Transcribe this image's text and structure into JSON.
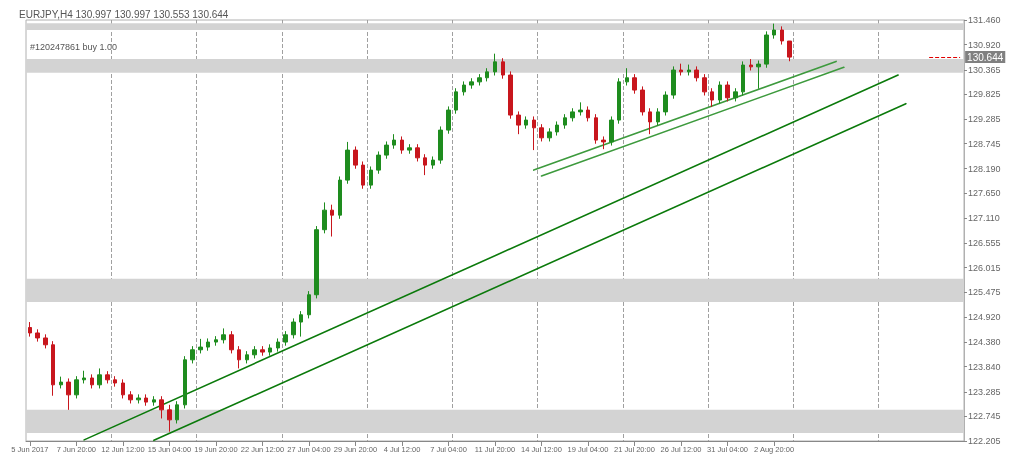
{
  "chart_data": {
    "type": "candlestick",
    "title": "EURJPY,H4 130.997 130.997 130.553 130.644",
    "annotations": [
      "#120247861 buy 1.00"
    ],
    "categories": [
      "5 Jun 2017",
      null,
      null,
      null,
      null,
      null,
      "7 Jun 20:00",
      null,
      null,
      null,
      null,
      null,
      "12 Jun 12:00",
      null,
      null,
      null,
      null,
      null,
      "15 Jun 04:00",
      null,
      null,
      null,
      null,
      null,
      "19 Jun 20:00",
      null,
      null,
      null,
      null,
      null,
      "22 Jun 12:00",
      null,
      null,
      null,
      null,
      null,
      "27 Jun 04:00",
      null,
      null,
      null,
      null,
      null,
      "29 Jun 20:00",
      null,
      null,
      null,
      null,
      null,
      "4 Jul 12:00",
      null,
      null,
      null,
      null,
      null,
      "7 Jul 04:00",
      null,
      null,
      null,
      null,
      null,
      "11 Jul 20:00",
      null,
      null,
      null,
      null,
      null,
      "14 Jul 12:00",
      null,
      null,
      null,
      null,
      null,
      "19 Jul 04:00",
      null,
      null,
      null,
      null,
      null,
      "21 Jul 20:00",
      null,
      null,
      null,
      null,
      null,
      "26 Jul 12:00",
      null,
      null,
      null,
      null,
      null,
      "31 Jul 04:00",
      null,
      null,
      null,
      null,
      null,
      "2 Aug 20:00",
      null,
      null,
      null,
      null,
      null,
      null,
      null,
      null,
      null,
      null,
      null,
      null,
      null,
      null,
      null,
      null,
      null,
      null,
      null,
      null,
      null,
      null,
      null,
      null
    ],
    "ohlc": [
      [
        124.7,
        124.82,
        124.5,
        124.58
      ],
      [
        124.58,
        124.66,
        124.39,
        124.47
      ],
      [
        124.47,
        124.55,
        124.24,
        124.32
      ],
      [
        124.32,
        124.4,
        123.2,
        123.44
      ],
      [
        123.44,
        123.62,
        123.36,
        123.5
      ],
      [
        123.5,
        123.58,
        122.89,
        123.22
      ],
      [
        123.22,
        123.63,
        123.14,
        123.55
      ],
      [
        123.55,
        123.75,
        123.47,
        123.59
      ],
      [
        123.59,
        123.67,
        123.36,
        123.44
      ],
      [
        123.44,
        123.8,
        123.36,
        123.66
      ],
      [
        123.66,
        123.74,
        123.47,
        123.55
      ],
      [
        123.55,
        123.63,
        123.4,
        123.48
      ],
      [
        123.48,
        123.56,
        123.14,
        123.22
      ],
      [
        123.22,
        123.3,
        123.03,
        123.11
      ],
      [
        123.11,
        123.23,
        123.03,
        123.15
      ],
      [
        123.15,
        123.23,
        122.98,
        123.06
      ],
      [
        123.06,
        123.19,
        122.98,
        123.11
      ],
      [
        123.11,
        123.19,
        122.7,
        122.89
      ],
      [
        122.89,
        123.0,
        122.41,
        122.67
      ],
      [
        122.67,
        123.08,
        122.59,
        123.0
      ],
      [
        123.0,
        124.07,
        122.92,
        123.99
      ],
      [
        123.99,
        124.29,
        123.91,
        124.21
      ],
      [
        124.21,
        124.45,
        124.13,
        124.27
      ],
      [
        124.27,
        124.46,
        124.19,
        124.38
      ],
      [
        124.38,
        124.51,
        124.3,
        124.43
      ],
      [
        124.43,
        124.68,
        124.35,
        124.54
      ],
      [
        124.54,
        124.62,
        124.13,
        124.21
      ],
      [
        124.21,
        124.29,
        123.8,
        123.99
      ],
      [
        123.99,
        124.18,
        123.91,
        124.1
      ],
      [
        124.1,
        124.29,
        124.02,
        124.21
      ],
      [
        124.21,
        124.29,
        124.08,
        124.16
      ],
      [
        124.16,
        124.33,
        124.08,
        124.25
      ],
      [
        124.25,
        124.46,
        124.17,
        124.38
      ],
      [
        124.38,
        124.62,
        124.3,
        124.54
      ],
      [
        124.54,
        124.9,
        124.46,
        124.82
      ],
      [
        124.82,
        125.06,
        124.5,
        124.98
      ],
      [
        124.98,
        125.5,
        124.9,
        125.42
      ],
      [
        125.42,
        126.93,
        125.34,
        126.85
      ],
      [
        126.85,
        127.45,
        126.77,
        127.28
      ],
      [
        127.28,
        127.4,
        126.7,
        127.17
      ],
      [
        127.17,
        128.02,
        127.09,
        127.94
      ],
      [
        127.94,
        128.78,
        127.86,
        128.6
      ],
      [
        128.6,
        128.68,
        128.19,
        128.27
      ],
      [
        128.27,
        128.35,
        127.75,
        127.83
      ],
      [
        127.83,
        128.24,
        127.75,
        128.16
      ],
      [
        128.16,
        128.57,
        128.08,
        128.49
      ],
      [
        128.49,
        128.79,
        128.41,
        128.71
      ],
      [
        128.71,
        128.95,
        128.63,
        128.82
      ],
      [
        128.82,
        128.9,
        128.52,
        128.6
      ],
      [
        128.6,
        128.73,
        128.52,
        128.65
      ],
      [
        128.65,
        128.73,
        128.35,
        128.43
      ],
      [
        128.43,
        128.51,
        128.05,
        128.27
      ],
      [
        128.27,
        128.46,
        128.19,
        128.38
      ],
      [
        128.38,
        129.12,
        128.3,
        129.04
      ],
      [
        129.04,
        129.56,
        128.96,
        129.48
      ],
      [
        129.48,
        129.96,
        129.4,
        129.88
      ],
      [
        129.88,
        130.11,
        129.8,
        130.03
      ],
      [
        130.03,
        130.18,
        129.95,
        130.1
      ],
      [
        130.1,
        130.27,
        130.02,
        130.19
      ],
      [
        130.19,
        130.4,
        130.11,
        130.32
      ],
      [
        130.32,
        130.72,
        130.24,
        130.54
      ],
      [
        130.54,
        130.62,
        130.17,
        130.25
      ],
      [
        130.25,
        130.33,
        129.29,
        129.37
      ],
      [
        129.37,
        129.45,
        128.95,
        129.15
      ],
      [
        129.15,
        129.34,
        129.07,
        129.26
      ],
      [
        129.26,
        129.34,
        128.6,
        129.09
      ],
      [
        129.09,
        129.17,
        128.79,
        128.87
      ],
      [
        128.87,
        129.08,
        128.79,
        129.0
      ],
      [
        129.0,
        129.23,
        128.92,
        129.15
      ],
      [
        129.15,
        129.39,
        129.07,
        129.31
      ],
      [
        129.31,
        129.52,
        129.23,
        129.44
      ],
      [
        129.44,
        129.65,
        129.36,
        129.48
      ],
      [
        129.48,
        129.56,
        129.23,
        129.31
      ],
      [
        129.31,
        129.39,
        128.74,
        128.82
      ],
      [
        128.82,
        128.9,
        128.62,
        128.78
      ],
      [
        128.78,
        129.34,
        128.7,
        129.26
      ],
      [
        129.26,
        130.18,
        129.18,
        130.1
      ],
      [
        130.1,
        130.4,
        130.02,
        130.19
      ],
      [
        130.19,
        130.27,
        129.84,
        129.92
      ],
      [
        129.92,
        130.0,
        129.36,
        129.44
      ],
      [
        129.44,
        129.52,
        128.95,
        129.22
      ],
      [
        129.22,
        129.52,
        129.14,
        129.44
      ],
      [
        129.44,
        129.89,
        129.36,
        129.81
      ],
      [
        129.81,
        130.44,
        129.73,
        130.36
      ],
      [
        130.36,
        130.5,
        130.24,
        130.32
      ],
      [
        130.32,
        130.48,
        130.24,
        130.36
      ],
      [
        130.36,
        130.44,
        130.11,
        130.19
      ],
      [
        130.19,
        130.27,
        129.8,
        129.88
      ],
      [
        129.88,
        129.96,
        129.55,
        129.7
      ],
      [
        129.7,
        130.11,
        129.62,
        130.03
      ],
      [
        130.03,
        130.11,
        129.67,
        129.75
      ],
      [
        129.75,
        129.96,
        129.67,
        129.88
      ],
      [
        129.88,
        130.55,
        129.8,
        130.47
      ],
      [
        130.47,
        130.6,
        130.35,
        130.43
      ],
      [
        130.43,
        130.57,
        129.95,
        130.49
      ],
      [
        130.49,
        131.21,
        130.41,
        131.13
      ],
      [
        131.13,
        131.38,
        131.05,
        131.24
      ],
      [
        131.24,
        131.32,
        130.92,
        131.0
      ],
      [
        130.997,
        130.997,
        130.553,
        130.644
      ],
      null,
      null,
      null,
      null,
      null,
      null,
      null,
      null,
      null,
      null,
      null,
      null,
      null,
      null,
      null,
      null,
      null,
      null,
      null,
      null,
      null,
      null
    ],
    "series": [
      {
        "type": "line",
        "color": "#0b7a0b",
        "values": [
          null,
          null,
          null,
          null,
          null,
          null,
          null,
          122.23,
          null,
          null,
          null,
          null,
          null,
          null,
          null,
          null,
          null,
          null,
          null,
          null,
          null,
          null,
          null,
          null,
          null,
          null,
          null,
          null,
          null,
          null,
          null,
          null,
          null,
          null,
          null,
          null,
          null,
          null,
          null,
          null,
          null,
          null,
          null,
          null,
          null,
          null,
          null,
          null,
          null,
          null,
          null,
          null,
          null,
          null,
          null,
          null,
          null,
          null,
          null,
          null,
          null,
          null,
          null,
          null,
          null,
          null,
          null,
          null,
          null,
          null,
          null,
          null,
          null,
          null,
          null,
          null,
          null,
          null,
          null,
          null,
          null,
          null,
          null,
          null,
          null,
          null,
          null,
          null,
          null,
          null,
          null,
          null,
          null,
          null,
          null,
          null,
          null,
          null,
          null,
          null,
          null,
          null,
          null,
          null,
          null,
          null,
          null,
          null,
          null,
          null,
          null,
          null,
          130.25,
          null,
          null,
          null,
          null,
          null,
          null,
          null,
          null
        ]
      },
      {
        "type": "line",
        "color": "#0b7a0b",
        "values": [
          null,
          null,
          null,
          null,
          null,
          null,
          null,
          null,
          null,
          null,
          null,
          null,
          null,
          null,
          null,
          null,
          122.22,
          null,
          null,
          null,
          null,
          null,
          null,
          null,
          null,
          null,
          null,
          null,
          null,
          null,
          null,
          null,
          null,
          null,
          null,
          null,
          null,
          null,
          null,
          null,
          null,
          null,
          null,
          null,
          null,
          null,
          null,
          null,
          null,
          null,
          null,
          null,
          null,
          null,
          null,
          null,
          null,
          null,
          null,
          null,
          null,
          null,
          null,
          null,
          null,
          null,
          null,
          null,
          null,
          null,
          null,
          null,
          null,
          null,
          null,
          null,
          null,
          null,
          null,
          null,
          null,
          null,
          null,
          null,
          null,
          null,
          null,
          null,
          null,
          null,
          null,
          null,
          null,
          null,
          null,
          null,
          null,
          null,
          null,
          null,
          null,
          null,
          null,
          null,
          null,
          null,
          null,
          null,
          null,
          null,
          null,
          null,
          null,
          129.62,
          null,
          null,
          null,
          null,
          null,
          null,
          null
        ]
      },
      {
        "type": "line",
        "color": "#3d9a3d",
        "values": [
          null,
          null,
          null,
          null,
          null,
          null,
          null,
          null,
          null,
          null,
          null,
          null,
          null,
          null,
          null,
          null,
          null,
          null,
          null,
          null,
          null,
          null,
          null,
          null,
          null,
          null,
          null,
          null,
          null,
          null,
          null,
          null,
          null,
          null,
          null,
          null,
          null,
          null,
          null,
          null,
          null,
          null,
          null,
          null,
          null,
          null,
          null,
          null,
          null,
          null,
          null,
          null,
          null,
          null,
          null,
          null,
          null,
          null,
          null,
          null,
          null,
          null,
          null,
          null,
          null,
          128.16,
          null,
          null,
          null,
          null,
          null,
          null,
          null,
          null,
          null,
          null,
          null,
          null,
          null,
          null,
          null,
          null,
          null,
          null,
          null,
          null,
          null,
          null,
          null,
          null,
          null,
          null,
          null,
          null,
          null,
          null,
          null,
          null,
          null,
          null,
          null,
          null,
          null,
          null,
          130.55,
          null,
          null,
          null,
          null,
          null,
          null,
          null,
          null,
          null,
          null,
          null,
          null,
          null,
          null,
          null,
          null
        ]
      },
      {
        "type": "line",
        "color": "#3d9a3d",
        "values": [
          null,
          null,
          null,
          null,
          null,
          null,
          null,
          null,
          null,
          null,
          null,
          null,
          null,
          null,
          null,
          null,
          null,
          null,
          null,
          null,
          null,
          null,
          null,
          null,
          null,
          null,
          null,
          null,
          null,
          null,
          null,
          null,
          null,
          null,
          null,
          null,
          null,
          null,
          null,
          null,
          null,
          null,
          null,
          null,
          null,
          null,
          null,
          null,
          null,
          null,
          null,
          null,
          null,
          null,
          null,
          null,
          null,
          null,
          null,
          null,
          null,
          null,
          null,
          null,
          null,
          null,
          128.03,
          null,
          null,
          null,
          null,
          null,
          null,
          null,
          null,
          null,
          null,
          null,
          null,
          null,
          null,
          null,
          null,
          null,
          null,
          null,
          null,
          null,
          null,
          null,
          null,
          null,
          null,
          null,
          null,
          null,
          null,
          null,
          null,
          null,
          null,
          null,
          null,
          null,
          null,
          130.42,
          null,
          null,
          null,
          null,
          null,
          null,
          null,
          null,
          null,
          null,
          null,
          null,
          null,
          null,
          null
        ]
      }
    ],
    "ylim": [
      122.205,
      131.46
    ],
    "yticks": [
      {
        "value": 122.205,
        "label": "122.205"
      },
      {
        "value": 122.745,
        "label": "122.745"
      },
      {
        "value": 123.285,
        "label": "123.285"
      },
      {
        "value": 123.84,
        "label": "123.840"
      },
      {
        "value": 124.38,
        "label": "124.380"
      },
      {
        "value": 124.92,
        "label": "124.920"
      },
      {
        "value": 125.475,
        "label": "125.475"
      },
      {
        "value": 126.015,
        "label": "126.015"
      },
      {
        "value": 126.555,
        "label": "126.555"
      },
      {
        "value": 127.11,
        "label": "127.110"
      },
      {
        "value": 127.65,
        "label": "127.650"
      },
      {
        "value": 128.19,
        "label": "128.190"
      },
      {
        "value": 128.745,
        "label": "128.745"
      },
      {
        "value": 129.285,
        "label": "129.285"
      },
      {
        "value": 129.825,
        "label": "129.825"
      },
      {
        "value": 130.365,
        "label": "130.365"
      },
      {
        "value": 130.92,
        "label": "130.920"
      },
      {
        "value": 131.46,
        "label": "131.460"
      }
    ],
    "bands": [
      {
        "axis": "y",
        "from": 122.38,
        "to": 122.89,
        "color": "#d3d3d3"
      },
      {
        "axis": "y",
        "from": 125.26,
        "to": 125.77,
        "color": "#d3d3d3"
      },
      {
        "axis": "y",
        "from": 130.3,
        "to": 130.6,
        "color": "#d3d3d3"
      },
      {
        "axis": "y",
        "from": 131.24,
        "to": 131.39,
        "color": "#d3d3d3"
      }
    ],
    "ref_lines": [
      {
        "axis": "y",
        "value": 130.644,
        "label": "130.644",
        "color": "#e00000",
        "line_style": "dashed"
      }
    ],
    "grid": "x",
    "marker": "none"
  }
}
